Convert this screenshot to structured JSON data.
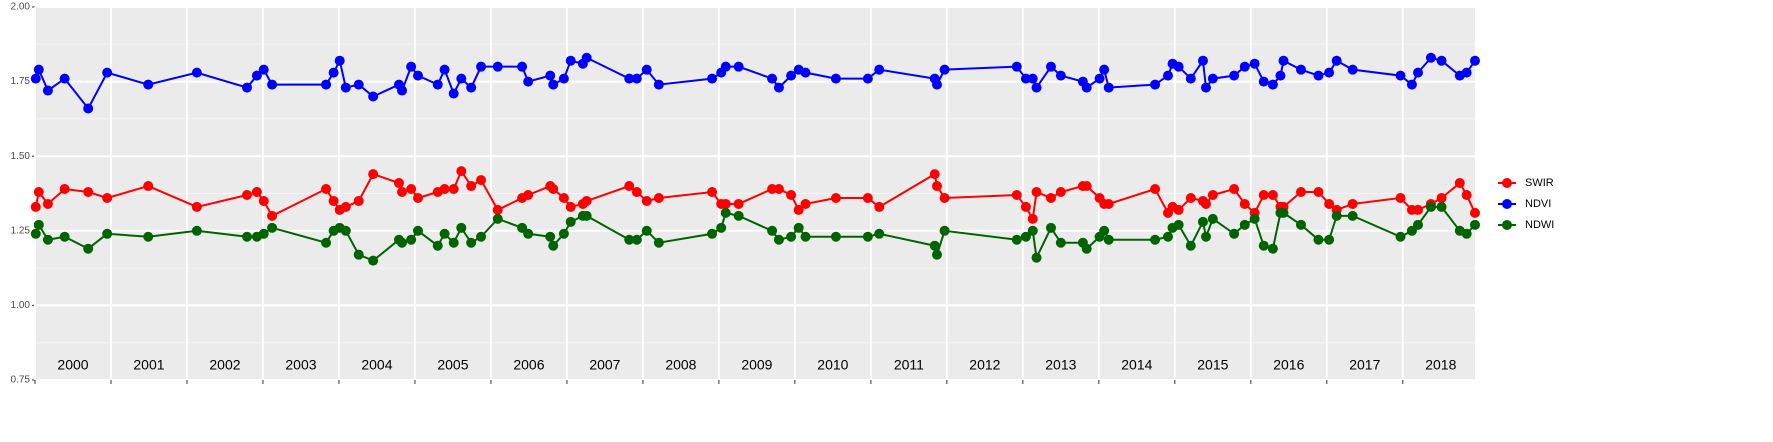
{
  "chart_data": {
    "type": "line",
    "x": [
      2000.01,
      2000.05,
      2000.17,
      2000.39,
      2000.7,
      2000.95,
      2001.49,
      2002.13,
      2002.79,
      2002.92,
      2003.01,
      2003.12,
      2003.83,
      2003.93,
      2004.01,
      2004.09,
      2004.26,
      2004.45,
      2004.79,
      2004.83,
      2004.95,
      2005.04,
      2005.3,
      2005.39,
      2005.51,
      2005.61,
      2005.74,
      2005.87,
      2006.09,
      2006.41,
      2006.49,
      2006.78,
      2006.82,
      2006.96,
      2007.05,
      2007.21,
      2007.26,
      2007.82,
      2007.92,
      2008.05,
      2008.21,
      2008.91,
      2009.03,
      2009.09,
      2009.26,
      2009.7,
      2009.79,
      2009.95,
      2010.05,
      2010.14,
      2010.54,
      2010.96,
      2011.11,
      2011.84,
      2011.87,
      2011.97,
      2012.92,
      2013.04,
      2013.13,
      2013.18,
      2013.37,
      2013.5,
      2013.79,
      2013.84,
      2014.01,
      2014.07,
      2014.13,
      2014.74,
      2014.91,
      2014.97,
      2015.05,
      2015.21,
      2015.37,
      2015.41,
      2015.5,
      2015.78,
      2015.92,
      2016.05,
      2016.17,
      2016.29,
      2016.39,
      2016.43,
      2016.66,
      2016.89,
      2017.03,
      2017.13,
      2017.34,
      2017.97,
      2018.12,
      2018.2,
      2018.37,
      2018.51,
      2018.75,
      2018.84,
      2018.95
    ],
    "series": [
      {
        "name": "SWIR",
        "color": "#ff0000",
        "values": [
          1.33,
          1.38,
          1.34,
          1.39,
          1.38,
          1.36,
          1.4,
          1.33,
          1.37,
          1.38,
          1.35,
          1.3,
          1.39,
          1.35,
          1.32,
          1.33,
          1.35,
          1.44,
          1.41,
          1.38,
          1.39,
          1.36,
          1.38,
          1.39,
          1.39,
          1.45,
          1.4,
          1.42,
          1.32,
          1.36,
          1.37,
          1.4,
          1.39,
          1.36,
          1.33,
          1.34,
          1.35,
          1.4,
          1.38,
          1.35,
          1.36,
          1.38,
          1.34,
          1.34,
          1.34,
          1.39,
          1.39,
          1.37,
          1.32,
          1.34,
          1.36,
          1.36,
          1.33,
          1.44,
          1.4,
          1.36,
          1.37,
          1.33,
          1.29,
          1.38,
          1.36,
          1.38,
          1.4,
          1.4,
          1.36,
          1.34,
          1.34,
          1.39,
          1.31,
          1.33,
          1.32,
          1.36,
          1.35,
          1.34,
          1.37,
          1.39,
          1.34,
          1.31,
          1.37,
          1.37,
          1.33,
          1.33,
          1.38,
          1.38,
          1.34,
          1.32,
          1.34,
          1.36,
          1.32,
          1.32,
          1.34,
          1.36,
          1.41,
          1.37,
          1.31
        ]
      },
      {
        "name": "NDVI",
        "color": "#0000ff",
        "values": [
          1.76,
          1.79,
          1.72,
          1.76,
          1.66,
          1.78,
          1.74,
          1.78,
          1.73,
          1.77,
          1.79,
          1.74,
          1.74,
          1.78,
          1.82,
          1.73,
          1.74,
          1.7,
          1.74,
          1.72,
          1.8,
          1.77,
          1.74,
          1.79,
          1.71,
          1.76,
          1.73,
          1.8,
          1.8,
          1.8,
          1.75,
          1.77,
          1.74,
          1.76,
          1.82,
          1.81,
          1.83,
          1.76,
          1.76,
          1.79,
          1.74,
          1.76,
          1.78,
          1.8,
          1.8,
          1.76,
          1.73,
          1.77,
          1.79,
          1.78,
          1.76,
          1.76,
          1.79,
          1.76,
          1.74,
          1.79,
          1.8,
          1.76,
          1.76,
          1.73,
          1.8,
          1.77,
          1.75,
          1.73,
          1.76,
          1.79,
          1.73,
          1.74,
          1.77,
          1.81,
          1.8,
          1.76,
          1.82,
          1.73,
          1.76,
          1.77,
          1.8,
          1.81,
          1.75,
          1.74,
          1.77,
          1.82,
          1.79,
          1.77,
          1.78,
          1.82,
          1.79,
          1.77,
          1.74,
          1.78,
          1.83,
          1.82,
          1.77,
          1.78,
          1.82
        ]
      },
      {
        "name": "NDWI",
        "color": "#006400",
        "values": [
          1.24,
          1.27,
          1.22,
          1.23,
          1.19,
          1.24,
          1.23,
          1.25,
          1.23,
          1.23,
          1.24,
          1.26,
          1.21,
          1.25,
          1.26,
          1.25,
          1.17,
          1.15,
          1.22,
          1.21,
          1.22,
          1.25,
          1.2,
          1.24,
          1.21,
          1.26,
          1.21,
          1.23,
          1.29,
          1.26,
          1.24,
          1.23,
          1.2,
          1.24,
          1.28,
          1.3,
          1.3,
          1.22,
          1.22,
          1.25,
          1.21,
          1.24,
          1.26,
          1.31,
          1.3,
          1.25,
          1.22,
          1.23,
          1.26,
          1.23,
          1.23,
          1.23,
          1.24,
          1.2,
          1.17,
          1.25,
          1.22,
          1.23,
          1.25,
          1.16,
          1.26,
          1.21,
          1.21,
          1.19,
          1.23,
          1.25,
          1.22,
          1.22,
          1.23,
          1.26,
          1.27,
          1.2,
          1.28,
          1.23,
          1.29,
          1.24,
          1.27,
          1.29,
          1.2,
          1.19,
          1.31,
          1.31,
          1.27,
          1.22,
          1.22,
          1.3,
          1.3,
          1.23,
          1.25,
          1.27,
          1.33,
          1.33,
          1.25,
          1.24,
          1.27
        ]
      }
    ],
    "xlim": [
      2000,
      2018.95
    ],
    "xticks": [
      2000,
      2001,
      2002,
      2003,
      2004,
      2005,
      2006,
      2007,
      2008,
      2009,
      2010,
      2011,
      2012,
      2013,
      2014,
      2015,
      2016,
      2017,
      2018
    ],
    "year_labels": [
      "2000",
      "2001",
      "2002",
      "2003",
      "2004",
      "2005",
      "2006",
      "2007",
      "2008",
      "2009",
      "2010",
      "2011",
      "2012",
      "2013",
      "2014",
      "2015",
      "2016",
      "2017",
      "2018"
    ],
    "ylim": [
      0.75,
      2
    ],
    "yticks": [
      0.75,
      {
        "value": 1,
        "label": "1.00"
      },
      1.25,
      {
        "value": 1.5,
        "label": "1.50"
      },
      1.75,
      {
        "value": 2,
        "label": "2.00"
      }
    ],
    "y_minor_grid": [
      0.875,
      1.125,
      1.375,
      1.625,
      1.875
    ],
    "grid": true
  }
}
